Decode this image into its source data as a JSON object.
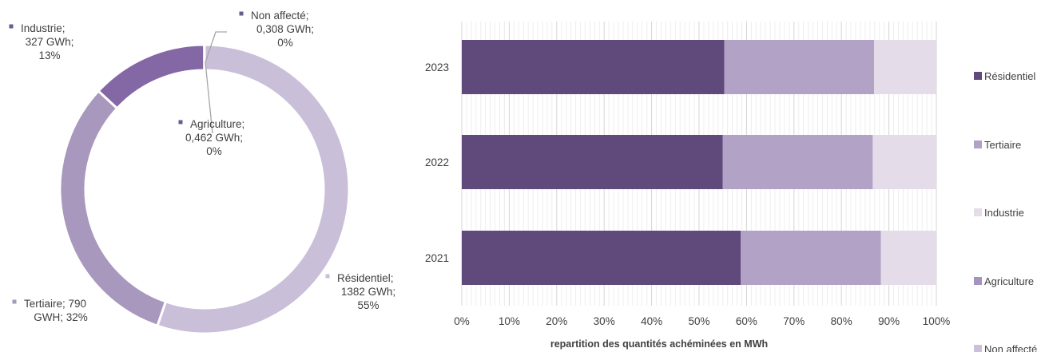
{
  "colors": {
    "residentiel": "#5f4a7b",
    "tertiaire": "#b2a2c6",
    "industrie": "#e4dde9",
    "agriculture": "#a493bd",
    "non_affecte": "#cbc0da",
    "donut_residentiel": "#c9bfd9",
    "donut_tertiaire": "#a898bd",
    "donut_industrie": "#8368a5",
    "donut_marker": "#6b5a8e",
    "grid_major": "#d4d4d4",
    "grid_minor": "#eeeeee",
    "text": "#404040"
  },
  "chart_data": [
    {
      "type": "pie",
      "donut": true,
      "slices": [
        {
          "key": "residentiel",
          "name": "Résidentiel",
          "value": 1382,
          "percent": 55,
          "label_lines": [
            "Résidentiel;",
            "1382 GWh;",
            "55%"
          ]
        },
        {
          "key": "tertiaire",
          "name": "Tertiaire",
          "value": 790,
          "percent": 32,
          "label_lines": [
            "Tertiaire; 790",
            "GWH; 32%"
          ]
        },
        {
          "key": "industrie",
          "name": "Industrie",
          "value": 327,
          "percent": 13,
          "label_lines": [
            "Industrie;",
            "327 GWh;",
            "13%"
          ]
        },
        {
          "key": "non_affecte",
          "name": "Non affecté",
          "value": 0.308,
          "percent": 0,
          "label_lines": [
            "Non affecté;",
            "0,308 GWh;",
            "0%"
          ]
        },
        {
          "key": "agriculture",
          "name": "Agriculture",
          "value": 0.462,
          "percent": 0,
          "label_lines": [
            "Agriculture;",
            "0,462 GWh;",
            "0%"
          ]
        }
      ]
    },
    {
      "type": "bar",
      "orientation": "horizontal",
      "stacked": "percent",
      "categories": [
        "2023",
        "2022",
        "2021"
      ],
      "series": [
        {
          "key": "residentiel",
          "name": "Résidentiel",
          "values": [
            55.3,
            55.0,
            58.8
          ]
        },
        {
          "key": "tertiaire",
          "name": "Tertiaire",
          "values": [
            31.6,
            31.6,
            29.5
          ]
        },
        {
          "key": "industrie",
          "name": "Industrie",
          "values": [
            13.1,
            13.4,
            11.7
          ]
        },
        {
          "key": "agriculture",
          "name": "Agriculture",
          "values": [
            0,
            0,
            0
          ]
        },
        {
          "key": "non_affecte",
          "name": "Non affecté",
          "values": [
            0,
            0,
            0
          ]
        }
      ],
      "xlim": [
        0,
        100
      ],
      "x_ticks": [
        "0%",
        "10%",
        "20%",
        "30%",
        "40%",
        "50%",
        "60%",
        "70%",
        "80%",
        "90%",
        "100%"
      ],
      "xlabel": "repartition  des quantités achéminées en MWh",
      "grid": true,
      "legend": {
        "position": "right",
        "entries": [
          {
            "key": "residentiel",
            "label": "Résidentiel"
          },
          {
            "key": "tertiaire",
            "label": "Tertiaire"
          },
          {
            "key": "industrie",
            "label": "Industrie"
          },
          {
            "key": "agriculture",
            "label": "Agriculture"
          },
          {
            "key": "non_affecte",
            "label": "Non affecté"
          }
        ]
      }
    }
  ]
}
